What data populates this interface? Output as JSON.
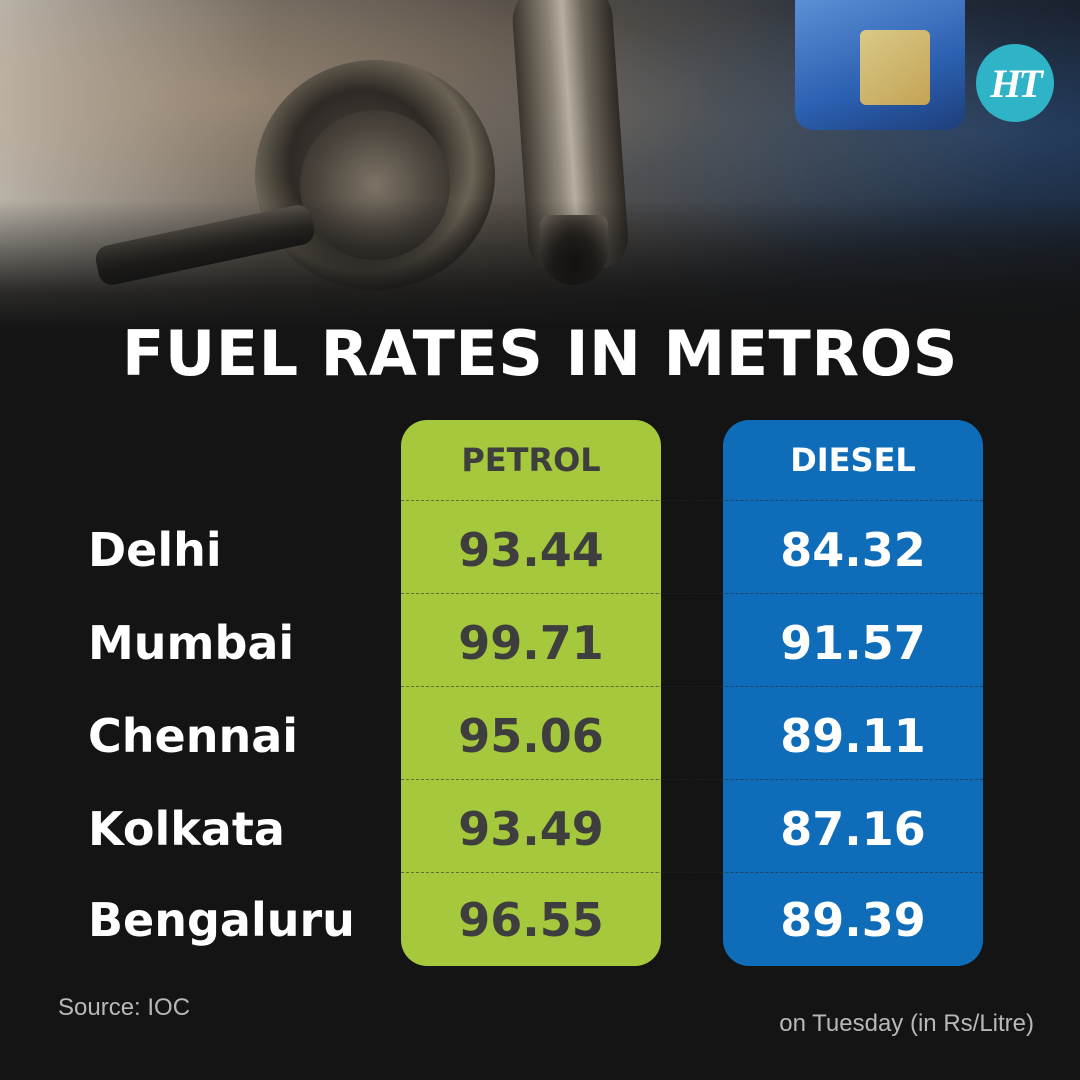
{
  "brand": {
    "logo_text": "HT",
    "accent_color": "#2fb3c6"
  },
  "title": "FUEL RATES IN METROS",
  "columns": {
    "petrol": {
      "label": "PETROL",
      "color": "#a6c83c"
    },
    "diesel": {
      "label": "DIESEL",
      "color": "#0e6cb8"
    }
  },
  "rows": [
    {
      "city": "Delhi",
      "petrol": "93.44",
      "diesel": "84.32"
    },
    {
      "city": "Mumbai",
      "petrol": "99.71",
      "diesel": "91.57"
    },
    {
      "city": "Chennai",
      "petrol": "95.06",
      "diesel": "89.11"
    },
    {
      "city": "Kolkata",
      "petrol": "93.49",
      "diesel": "87.16"
    },
    {
      "city": "Bengaluru",
      "petrol": "96.55",
      "diesel": "89.39"
    }
  ],
  "footer": {
    "source": "Source: IOC",
    "note": "on Tuesday (in Rs/Litre)"
  }
}
